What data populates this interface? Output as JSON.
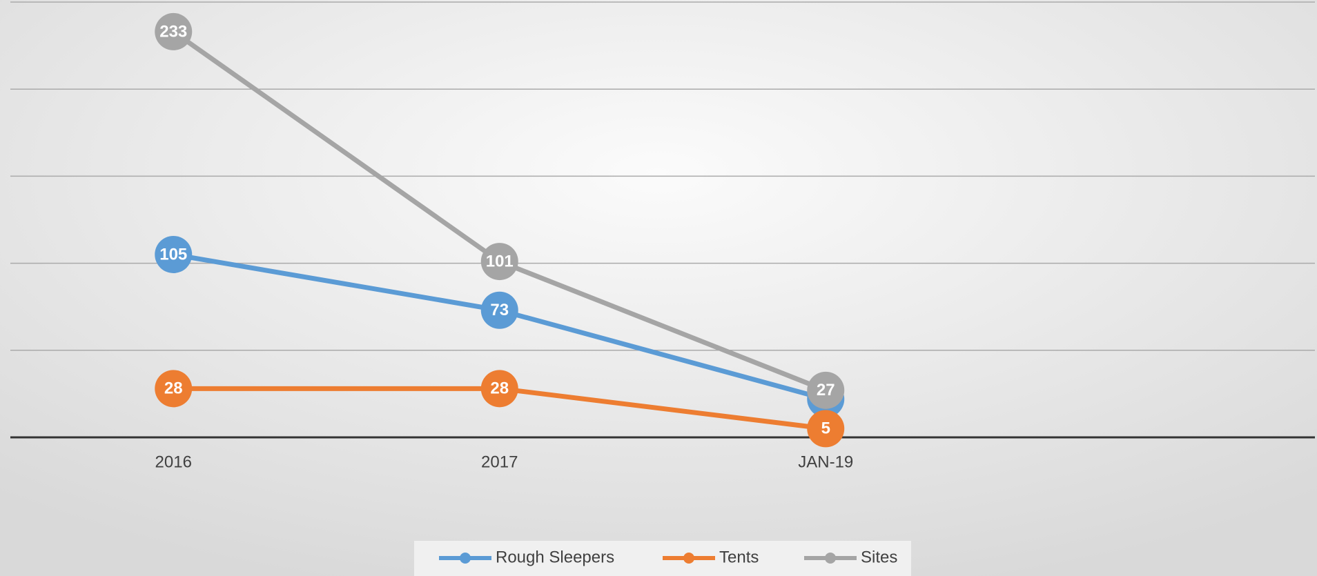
{
  "chart_data": {
    "type": "line",
    "categories": [
      "2016",
      "2017",
      "JAN-19",
      null
    ],
    "series": [
      {
        "name": "Rough Sleepers",
        "color": "#5b9bd5",
        "values": [
          105,
          73,
          22,
          null
        ]
      },
      {
        "name": "Tents",
        "color": "#ed7d31",
        "values": [
          28,
          28,
          5,
          null
        ]
      },
      {
        "name": "Sites",
        "color": "#a5a5a5",
        "values": [
          233,
          101,
          27,
          null
        ]
      }
    ],
    "ylim": [
      0,
      250
    ],
    "yticks": [
      0,
      50,
      100,
      150,
      200,
      250
    ],
    "grid": true,
    "legend": "bottom"
  }
}
